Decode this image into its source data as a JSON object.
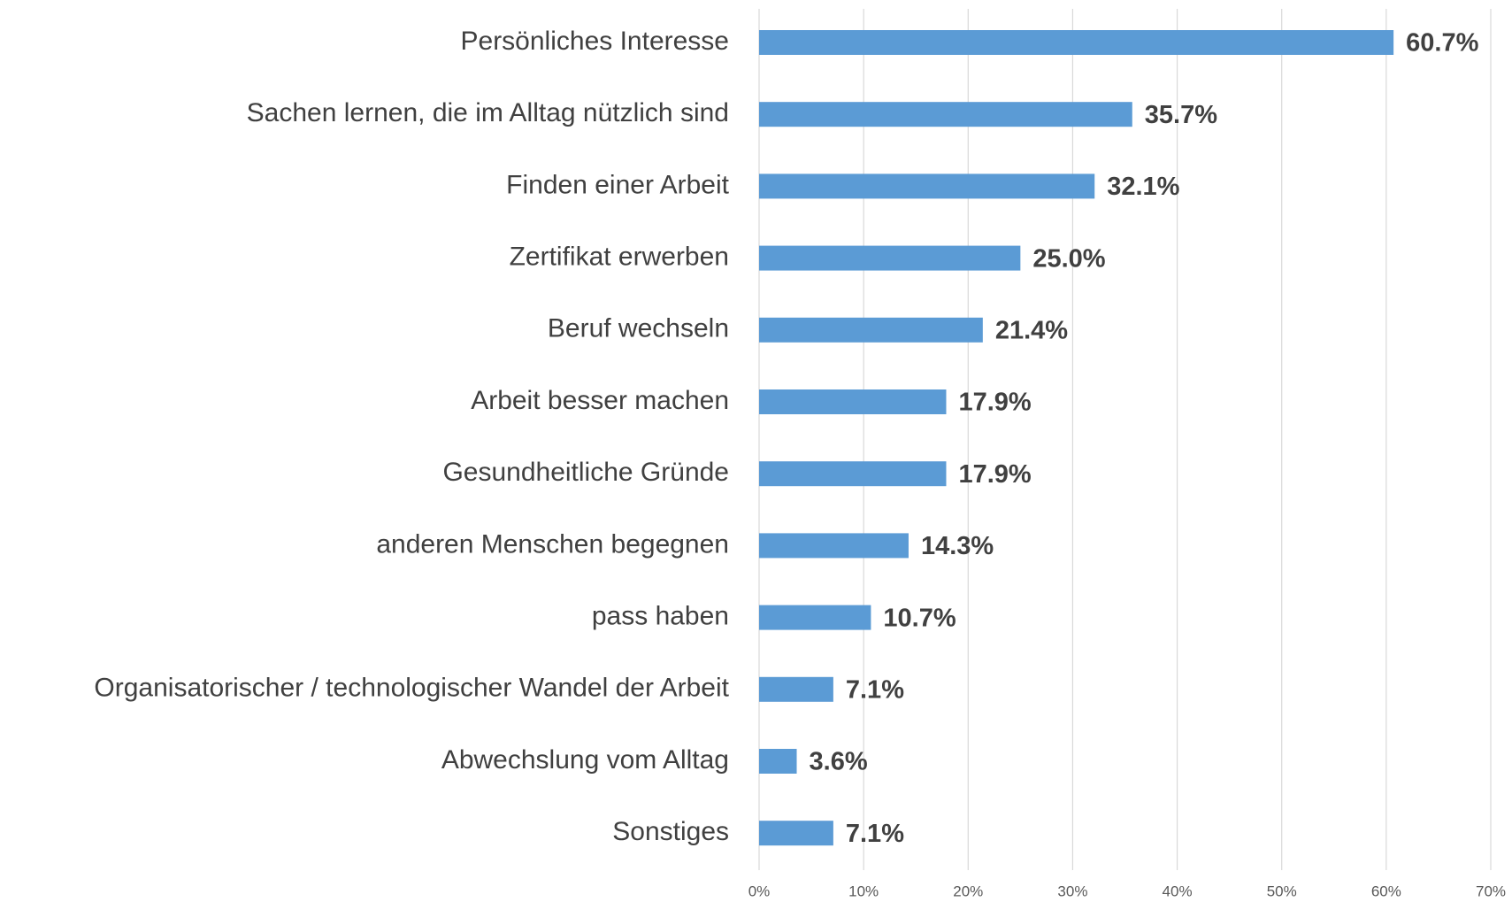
{
  "chart_data": {
    "type": "bar",
    "orientation": "horizontal",
    "categories": [
      "Persönliches Interesse",
      "Sachen lernen, die im Alltag nützlich sind",
      "Finden einer Arbeit",
      "Zertifikat erwerben",
      "Beruf wechseln",
      "Arbeit besser machen",
      "Gesundheitliche Gründe",
      "anderen Menschen begegnen",
      "pass haben",
      "Organisatorischer / technologischer Wandel der Arbeit",
      "Abwechslung vom Alltag",
      "Sonstiges"
    ],
    "values": [
      60.7,
      35.7,
      32.1,
      25.0,
      21.4,
      17.9,
      17.9,
      14.3,
      10.7,
      7.1,
      3.6,
      7.1
    ],
    "value_labels": [
      "60.7%",
      "35.7%",
      "32.1%",
      "25.0%",
      "21.4%",
      "17.9%",
      "17.9%",
      "14.3%",
      "10.7%",
      "7.1%",
      "3.6%",
      "7.1%"
    ],
    "color": "#5b9bd5",
    "xlim": [
      0,
      70
    ],
    "xticks": [
      {
        "value": 0,
        "label": "0%"
      },
      {
        "value": 10,
        "label": "10%"
      },
      {
        "value": 20,
        "label": "20%"
      },
      {
        "value": 30,
        "label": "30%"
      },
      {
        "value": 40,
        "label": "40%"
      },
      {
        "value": 50,
        "label": "50%"
      },
      {
        "value": 60,
        "label": "60%"
      },
      {
        "value": 70,
        "label": "70%"
      }
    ],
    "grid": true
  }
}
